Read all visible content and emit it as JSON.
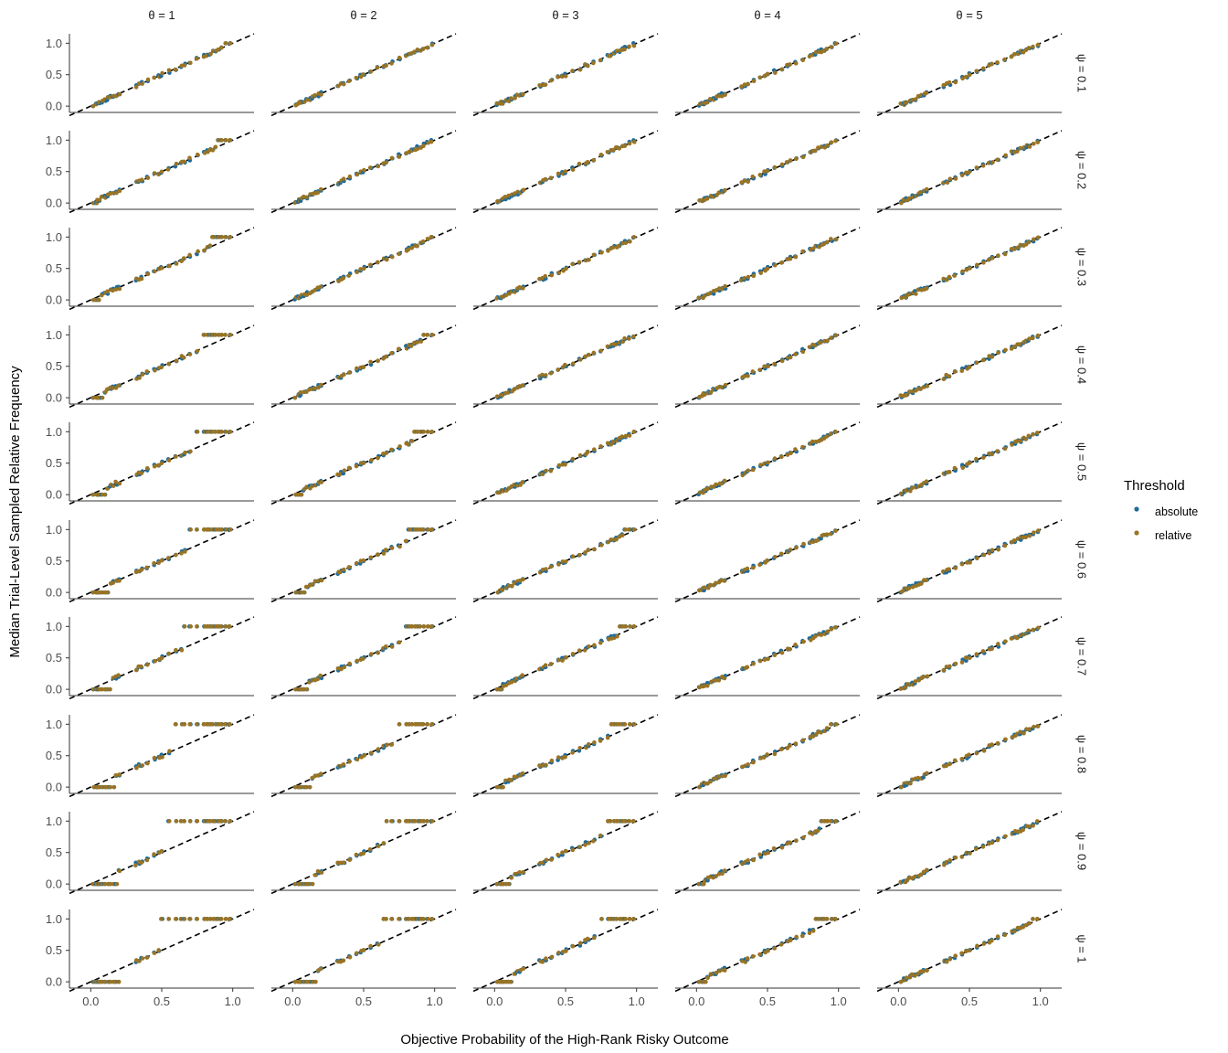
{
  "chart_data": {
    "type": "scatter",
    "layout": "facet-grid",
    "xlabel": "Objective Probability of the High-Rank Risky Outcome",
    "ylabel": "Median Trial-Level Sampled Relative Frequency",
    "xlim": [
      -0.15,
      1.15
    ],
    "ylim": [
      -0.1,
      1.15
    ],
    "x_ticks": [
      "0.0",
      "0.5",
      "1.0"
    ],
    "y_ticks": [
      "0.0",
      "0.5",
      "1.0"
    ],
    "column_facets": [
      "θ = 1",
      "θ = 2",
      "θ = 3",
      "θ = 4",
      "θ = 5"
    ],
    "row_facets": [
      "ψ = 0.1",
      "ψ = 0.2",
      "ψ = 0.3",
      "ψ = 0.4",
      "ψ = 0.5",
      "ψ = 0.6",
      "ψ = 0.7",
      "ψ = 0.8",
      "ψ = 0.9",
      "ψ = 1"
    ],
    "reference_line": {
      "style": "dashed",
      "color": "#000000",
      "slope": 1,
      "intercept": 0
    },
    "legend": {
      "title": "Threshold",
      "position": "right",
      "entries": [
        {
          "name": "absolute",
          "color": "#1f6b9a"
        },
        {
          "name": "relative",
          "color": "#9a7424"
        }
      ]
    },
    "grid": false,
    "x_probabilities": [
      0.02,
      0.04,
      0.05,
      0.06,
      0.08,
      0.1,
      0.12,
      0.14,
      0.16,
      0.18,
      0.2,
      0.32,
      0.34,
      0.36,
      0.4,
      0.45,
      0.48,
      0.5,
      0.55,
      0.6,
      0.64,
      0.66,
      0.7,
      0.75,
      0.8,
      0.82,
      0.84,
      0.86,
      0.88,
      0.9,
      0.92,
      0.95,
      0.98
    ],
    "pattern_note": "Points follow the identity line; as ψ increases and θ decreases, sampled frequencies collapse toward 0 for low probabilities and toward 1 for high probabilities."
  }
}
